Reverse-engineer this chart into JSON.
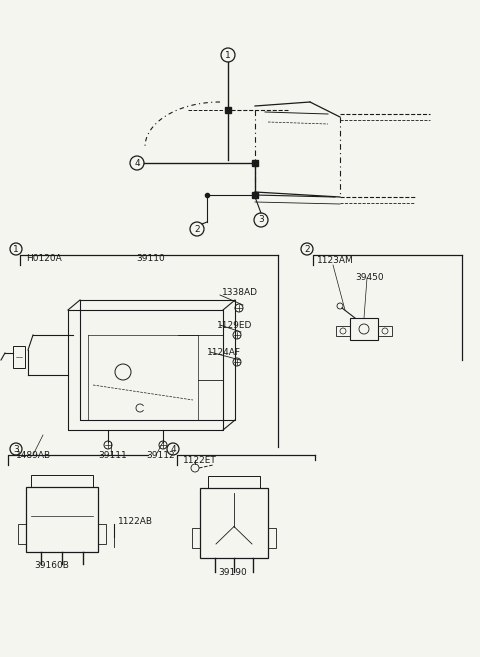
{
  "bg_color": "#f5f5f0",
  "line_color": "#1a1a1a",
  "section1_labels": [
    "H0120A",
    "39110",
    "1338AD",
    "1129ED",
    "1124AF",
    "1489AB",
    "39111",
    "39112"
  ],
  "section2_labels": [
    "1123AM",
    "39450"
  ],
  "section3_labels": [
    "1122AB",
    "39160B"
  ],
  "section4_labels": [
    "1122ET",
    "39190"
  ],
  "font_size": 6.5
}
